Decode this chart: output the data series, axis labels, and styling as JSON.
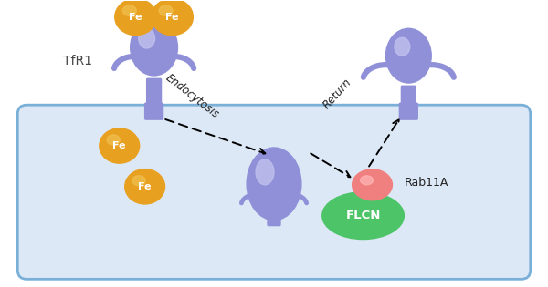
{
  "fig_width": 6.0,
  "fig_height": 3.15,
  "dpi": 100,
  "bg_color": "#ffffff",
  "cell_color": "#dce8f5",
  "cell_edge_color": "#7ab0d8",
  "purple": "#9090d8",
  "purple_light": "#c0c0ee",
  "orange": "#e8a020",
  "orange_light": "#f0c050",
  "green": "#4dc468",
  "pink": "#f08080",
  "label_tfr1": "TfR1",
  "label_endocytosis": "Endocytosis",
  "label_return": "Return",
  "label_rab11a": "Rab11A",
  "label_flcn": "FLCN",
  "label_fe": "Fe"
}
